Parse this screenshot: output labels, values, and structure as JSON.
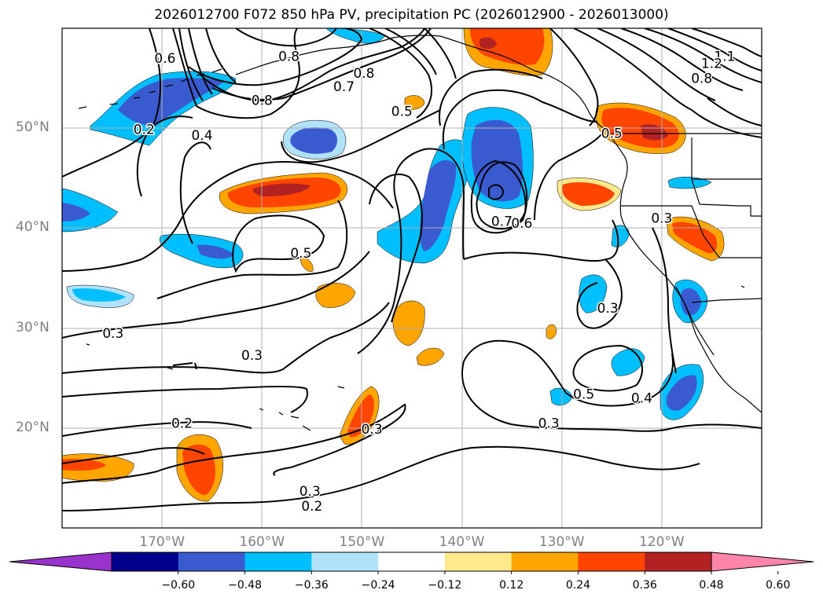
{
  "title": "2026012700 F072 850 hPa PV, precipitation PC (2026012900 - 2026013000)",
  "map": {
    "extent": {
      "lon_min": -180,
      "lon_max": -110,
      "lat_min": 10,
      "lat_max": 60
    },
    "lat_labels": [
      {
        "lat": 50,
        "text": "50°N"
      },
      {
        "lat": 40,
        "text": "40°N"
      },
      {
        "lat": 30,
        "text": "30°N"
      },
      {
        "lat": 20,
        "text": "20°N"
      }
    ],
    "lon_labels": [
      {
        "lon": -170,
        "text": "170°W"
      },
      {
        "lon": -160,
        "text": "160°W"
      },
      {
        "lon": -150,
        "text": "150°W"
      },
      {
        "lon": -140,
        "text": "140°W"
      },
      {
        "lon": -130,
        "text": "130°W"
      },
      {
        "lon": -120,
        "text": "120°W"
      }
    ],
    "gridlines": true,
    "contour_labels": [
      {
        "text": "0.6",
        "lon": -169.7,
        "lat": 57.0
      },
      {
        "text": "0.2",
        "lon": -171.8,
        "lat": 49.9
      },
      {
        "text": "0.4",
        "lon": -166.0,
        "lat": 49.3
      },
      {
        "text": "0.8",
        "lon": -157.3,
        "lat": 57.2
      },
      {
        "text": "0.8",
        "lon": -149.8,
        "lat": 55.5
      },
      {
        "text": "0.7",
        "lon": -151.8,
        "lat": 54.2
      },
      {
        "text": "0.8",
        "lon": -160.0,
        "lat": 52.8
      },
      {
        "text": "0.5",
        "lon": -146.0,
        "lat": 51.7
      },
      {
        "text": "0.5",
        "lon": -125.0,
        "lat": 49.5
      },
      {
        "text": "0.7",
        "lon": -136.0,
        "lat": 40.7
      },
      {
        "text": "0.6",
        "lon": -134.0,
        "lat": 40.5
      },
      {
        "text": "0.5",
        "lon": -156.1,
        "lat": 37.5
      },
      {
        "text": "0.3",
        "lon": -120.0,
        "lat": 41.0
      },
      {
        "text": "1.1",
        "lon": -113.7,
        "lat": 57.2
      },
      {
        "text": "1.2",
        "lon": -115.0,
        "lat": 56.5
      },
      {
        "text": "0.8",
        "lon": -116.0,
        "lat": 55.0
      },
      {
        "text": "0.3",
        "lon": -174.9,
        "lat": 29.5
      },
      {
        "text": "0.3",
        "lon": -161.0,
        "lat": 27.3
      },
      {
        "text": "0.3",
        "lon": -125.4,
        "lat": 32.0
      },
      {
        "text": "0.5",
        "lon": -127.8,
        "lat": 23.4
      },
      {
        "text": "0.4",
        "lon": -122.0,
        "lat": 23.0
      },
      {
        "text": "0.3",
        "lon": -149.0,
        "lat": 19.9
      },
      {
        "text": "0.3",
        "lon": -131.3,
        "lat": 20.5
      },
      {
        "text": "0.2",
        "lon": -168.0,
        "lat": 20.5
      },
      {
        "text": "0.3",
        "lon": -155.2,
        "lat": 13.7
      },
      {
        "text": "0.2",
        "lon": -155.0,
        "lat": 12.2
      }
    ]
  },
  "colorbar": {
    "colors": [
      "#9933cc",
      "#00008b",
      "#3a5bd0",
      "#00bfff",
      "#b0e2fa",
      "#ffffff",
      "#ffe98a",
      "#ffa500",
      "#ff4500",
      "#b22222",
      "#ff85aa"
    ],
    "ticks": [
      "−0.60",
      "−0.48",
      "−0.36",
      "−0.24",
      "−0.12",
      "0.12",
      "0.24",
      "0.36",
      "0.48",
      "0.60"
    ]
  }
}
